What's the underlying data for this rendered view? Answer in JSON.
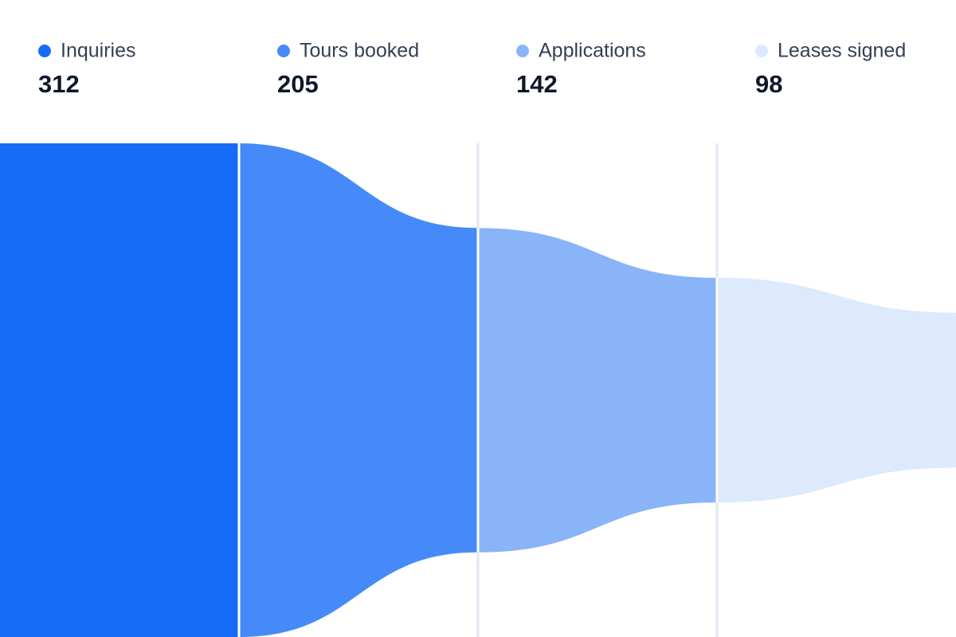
{
  "chart_data": {
    "type": "funnel",
    "categories": [
      "Inquiries",
      "Tours booked",
      "Applications",
      "Leases signed"
    ],
    "values": [
      312,
      205,
      142,
      98
    ],
    "colors": [
      "#166cf7",
      "#468af9",
      "#8ab4f8",
      "#dde9fd"
    ]
  }
}
